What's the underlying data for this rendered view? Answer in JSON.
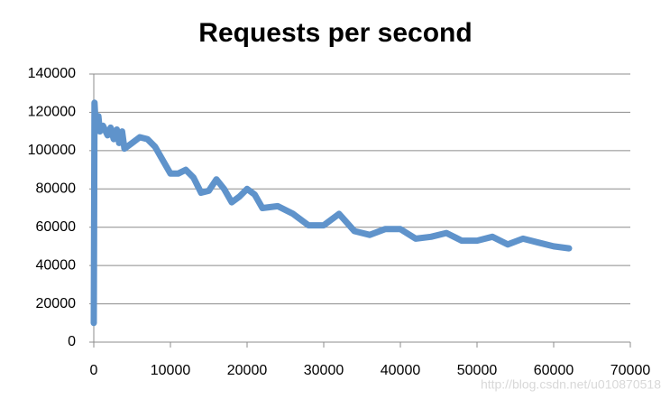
{
  "chart_data": {
    "type": "line",
    "title": "Requests per second",
    "x": [
      0,
      100,
      300,
      600,
      800,
      1200,
      1800,
      2200,
      2600,
      3000,
      3300,
      3700,
      4000,
      5000,
      6000,
      7000,
      8000,
      9000,
      10000,
      11000,
      12000,
      13000,
      14000,
      15000,
      16000,
      17000,
      18000,
      19000,
      20000,
      21000,
      22000,
      24000,
      26000,
      28000,
      30000,
      32000,
      34000,
      36000,
      38000,
      40000,
      42000,
      44000,
      46000,
      48000,
      50000,
      52000,
      54000,
      56000,
      58000,
      60000,
      62000
    ],
    "values": [
      10000,
      125000,
      110000,
      118000,
      110000,
      113000,
      108000,
      112000,
      106000,
      111000,
      104000,
      110000,
      101000,
      104000,
      107000,
      106000,
      102000,
      95000,
      88000,
      88000,
      90000,
      86000,
      78000,
      79000,
      85000,
      80000,
      73000,
      76000,
      80000,
      77000,
      70000,
      71000,
      67000,
      61000,
      61000,
      67000,
      58000,
      56000,
      59000,
      59000,
      54000,
      55000,
      57000,
      53000,
      53000,
      55000,
      51000,
      54000,
      52000,
      50000,
      49000
    ],
    "color": "#5f93cb",
    "xlim": [
      0,
      70000
    ],
    "xticks": [
      0,
      10000,
      20000,
      30000,
      40000,
      50000,
      60000,
      70000
    ],
    "ylim": [
      0,
      140000
    ],
    "yticks": [
      0,
      20000,
      40000,
      60000,
      80000,
      100000,
      120000,
      140000
    ],
    "grid": true,
    "watermark": "http://blog.csdn.net/u010870518"
  }
}
